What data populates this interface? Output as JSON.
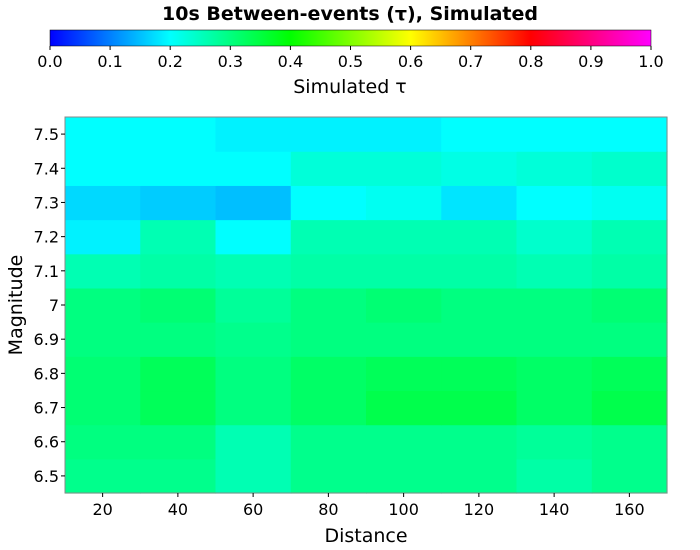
{
  "chart_data": {
    "type": "heatmap",
    "title": "10s Between-events (τ), Simulated",
    "xlabel": "Distance",
    "ylabel": "Magnitude",
    "x": [
      20,
      40,
      60,
      80,
      100,
      120,
      140,
      160
    ],
    "y": [
      "6.5",
      "6.6",
      "6.7",
      "6.8",
      "6.9",
      "7",
      "7.1",
      "7.2",
      "7.3",
      "7.4",
      "7.5"
    ],
    "xlim": [
      10,
      170
    ],
    "colorbar": {
      "label": "Simulated τ",
      "range": [
        0,
        1
      ],
      "ticks": [
        "0.0",
        "0.1",
        "0.2",
        "0.3",
        "0.4",
        "0.5",
        "0.6",
        "0.7",
        "0.8",
        "0.9",
        "1.0"
      ],
      "position": "top",
      "colors": [
        "#0000ff",
        "#00ffff",
        "#00ff00",
        "#ffff00",
        "#ff0000",
        "#ff00ff"
      ]
    },
    "values": [
      [
        0.29,
        0.29,
        0.26,
        0.29,
        0.29,
        0.29,
        0.27,
        0.29
      ],
      [
        0.3,
        0.3,
        0.26,
        0.29,
        0.29,
        0.29,
        0.28,
        0.29
      ],
      [
        0.31,
        0.33,
        0.3,
        0.32,
        0.34,
        0.34,
        0.32,
        0.34
      ],
      [
        0.31,
        0.33,
        0.3,
        0.32,
        0.33,
        0.33,
        0.32,
        0.33
      ],
      [
        0.3,
        0.3,
        0.29,
        0.3,
        0.3,
        0.3,
        0.3,
        0.3
      ],
      [
        0.3,
        0.31,
        0.28,
        0.3,
        0.31,
        0.3,
        0.3,
        0.31
      ],
      [
        0.26,
        0.27,
        0.26,
        0.27,
        0.27,
        0.27,
        0.26,
        0.27
      ],
      [
        0.19,
        0.26,
        0.2,
        0.26,
        0.26,
        0.26,
        0.24,
        0.26
      ],
      [
        0.17,
        0.16,
        0.15,
        0.2,
        0.21,
        0.18,
        0.2,
        0.21
      ],
      [
        0.2,
        0.2,
        0.2,
        0.23,
        0.23,
        0.22,
        0.23,
        0.24
      ],
      [
        0.2,
        0.2,
        0.19,
        0.19,
        0.19,
        0.2,
        0.2,
        0.2
      ]
    ]
  }
}
